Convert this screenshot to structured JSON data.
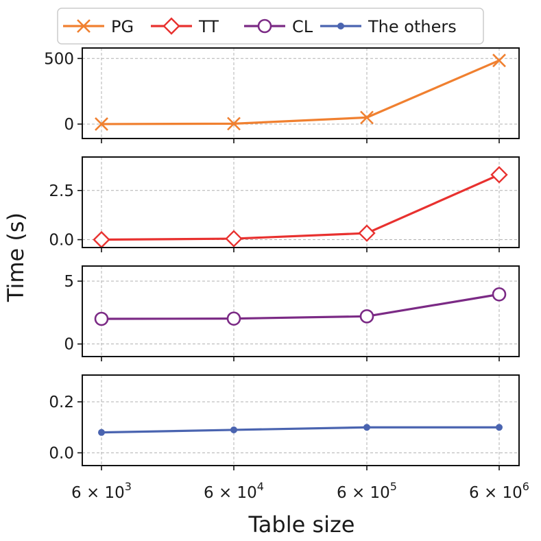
{
  "chart_data": {
    "type": "line",
    "xlabel": "Table size",
    "ylabel": "Time (s)",
    "x_scale": "log",
    "x": [
      6000,
      60000,
      600000,
      6000000
    ],
    "x_ticks": [
      {
        "base": "6 × 10",
        "exp": "3"
      },
      {
        "base": "6 × 10",
        "exp": "4"
      },
      {
        "base": "6 × 10",
        "exp": "5"
      },
      {
        "base": "6 × 10",
        "exp": "6"
      }
    ],
    "legend": {
      "placement": "top-center",
      "entries": [
        "PG",
        "TT",
        "CL",
        "The others"
      ]
    },
    "grid": true,
    "panels": [
      {
        "series_name": "PG",
        "color": "#f08030",
        "marker": "x",
        "values": [
          0,
          3,
          50,
          485
        ],
        "ylim": [
          -110,
          580
        ],
        "yticks": [
          0,
          500
        ],
        "ytick_labels": [
          "0",
          "500"
        ]
      },
      {
        "series_name": "TT",
        "color": "#e8312f",
        "marker": "diamond",
        "values": [
          0.0,
          0.05,
          0.33,
          3.3
        ],
        "ylim": [
          -0.4,
          4.2
        ],
        "yticks": [
          0,
          2.5
        ],
        "ytick_labels": [
          "0.0",
          "2.5"
        ]
      },
      {
        "series_name": "CL",
        "color": "#7b2a85",
        "marker": "circle",
        "values": [
          2.0,
          2.02,
          2.2,
          3.95
        ],
        "ylim": [
          -1.0,
          6.2
        ],
        "yticks": [
          0,
          5
        ],
        "ytick_labels": [
          "0",
          "5"
        ]
      },
      {
        "series_name": "The others",
        "color": "#4a64b0",
        "marker": "dot",
        "values": [
          0.08,
          0.09,
          0.1,
          0.1
        ],
        "ylim": [
          -0.05,
          0.305
        ],
        "yticks": [
          0,
          0.2
        ],
        "ytick_labels": [
          "0.0",
          "0.2"
        ]
      }
    ]
  }
}
